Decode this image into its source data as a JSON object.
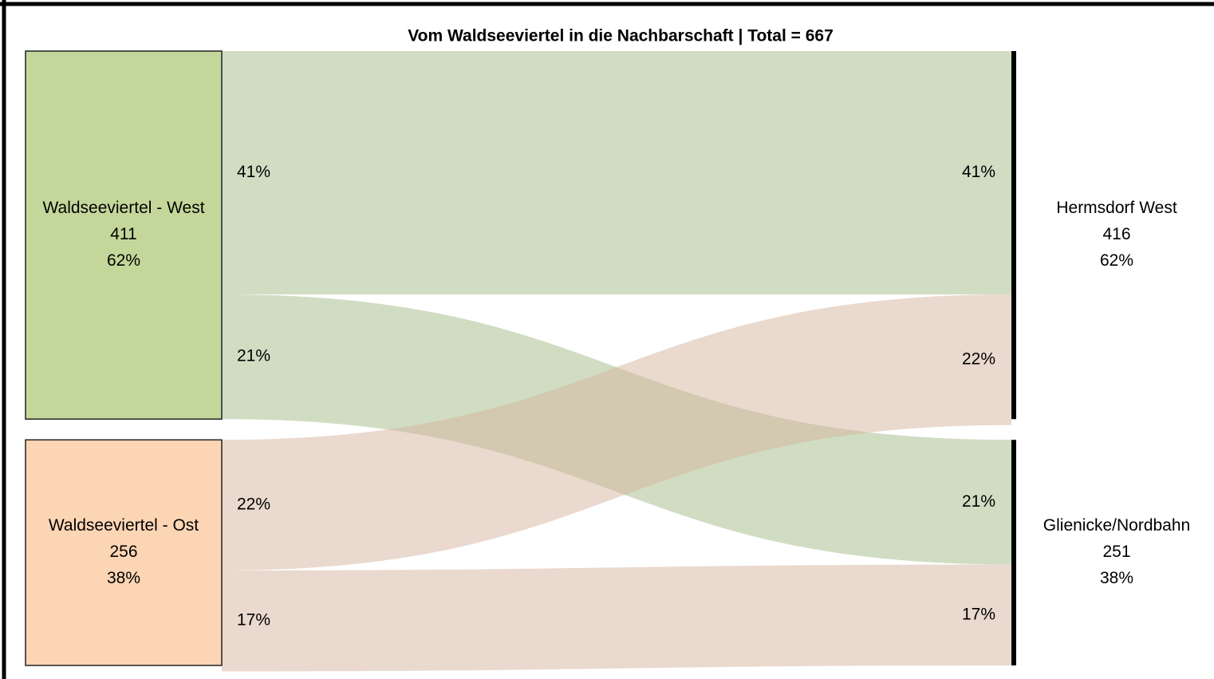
{
  "chart_data": {
    "type": "sankey",
    "title": "Vom Waldseeviertel in die Nachbarschaft | Total = 667",
    "sources": {
      "names": [
        "Waldseeviertel - West",
        "Waldseeviertel - Ost"
      ],
      "counts": [
        411,
        256
      ],
      "shares": [
        62,
        38
      ],
      "share_labels": [
        "62%",
        "38%"
      ],
      "colors": [
        "#c4d79b",
        "#fcd5b5"
      ]
    },
    "targets": {
      "names": [
        "Hermsdorf West",
        "Glienicke/Nordbahn"
      ],
      "counts": [
        416,
        251
      ],
      "shares": [
        62,
        38
      ],
      "share_labels": [
        "62%",
        "38%"
      ],
      "color": "#000000"
    },
    "flows": {
      "values": [
        [
          41,
          21
        ],
        [
          22,
          17
        ]
      ],
      "value_labels": [
        [
          "41%",
          "21%"
        ],
        [
          "22%",
          "17%"
        ]
      ],
      "colors": [
        "#a3bb88",
        "#d6b49e"
      ]
    }
  }
}
